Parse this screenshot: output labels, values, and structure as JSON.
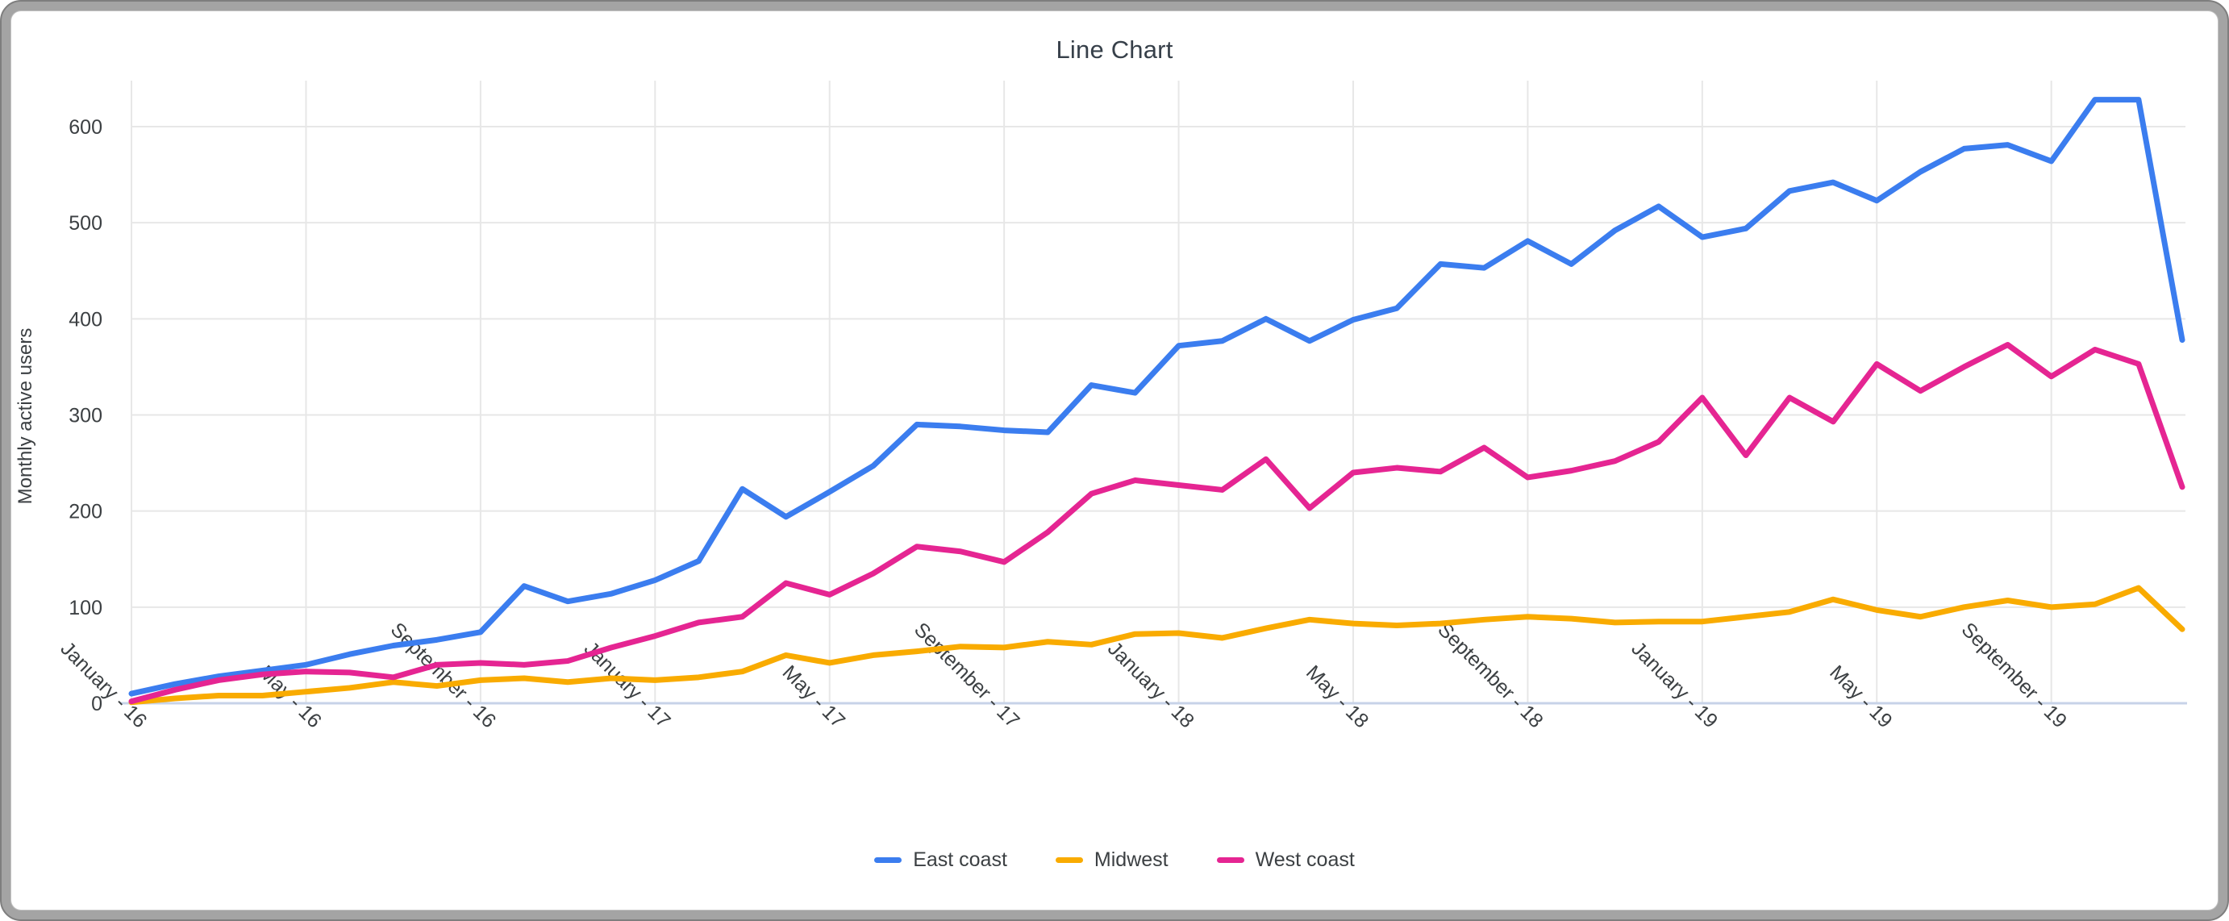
{
  "title": "Line Chart",
  "y_axis": {
    "title": "Monthly active users",
    "tick_labels": [
      "0",
      "100",
      "200",
      "300",
      "400",
      "500",
      "600"
    ]
  },
  "x_axis": {
    "tick_labels": [
      "January - 16",
      "May - 16",
      "September - 16",
      "January - 17",
      "May - 17",
      "September - 17",
      "January - 18",
      "May - 18",
      "September - 18",
      "January - 19",
      "May - 19",
      "September - 19"
    ]
  },
  "colors": {
    "east_coast": "#3b7def",
    "midwest": "#f9ab00",
    "west_coast": "#e52592",
    "gridline": "#e7e7e7",
    "axis_line": "#c7d3e8",
    "tick_text": "#3c4043"
  },
  "legend": {
    "items": [
      {
        "label": "East coast",
        "color": "#3b7def"
      },
      {
        "label": "Midwest",
        "color": "#f9ab00"
      },
      {
        "label": "West coast",
        "color": "#e52592"
      }
    ]
  },
  "chart_data": {
    "type": "line",
    "title": "Line Chart",
    "ylabel": "Monthly active users",
    "n_points": 48,
    "x_range_months": "January 2016 - December 2019",
    "x_tick_indices": [
      0,
      4,
      8,
      12,
      16,
      20,
      24,
      28,
      32,
      36,
      40,
      44
    ],
    "x_tick_labels": [
      "January - 16",
      "May - 16",
      "September - 16",
      "January - 17",
      "May - 17",
      "September - 17",
      "January - 18",
      "May - 18",
      "September - 18",
      "January - 19",
      "May - 19",
      "September - 19"
    ],
    "yticks": [
      0,
      100,
      200,
      300,
      400,
      500,
      600
    ],
    "ylim": [
      0,
      640
    ],
    "grid": true,
    "legend_position": "bottom",
    "series": [
      {
        "name": "East coast",
        "color": "#3b7def",
        "values": [
          10,
          20,
          28,
          34,
          40,
          51,
          60,
          66,
          74,
          122,
          106,
          114,
          128,
          148,
          223,
          194,
          220,
          247,
          290,
          288,
          284,
          282,
          331,
          323,
          372,
          377,
          400,
          377,
          399,
          411,
          457,
          453,
          481,
          457,
          492,
          517,
          485,
          494,
          533,
          542,
          523,
          553,
          577,
          581,
          564,
          628,
          628,
          378
        ]
      },
      {
        "name": "Midwest",
        "color": "#f9ab00",
        "values": [
          1,
          5,
          8,
          8,
          12,
          16,
          22,
          18,
          24,
          26,
          22,
          26,
          24,
          27,
          33,
          50,
          42,
          50,
          54,
          59,
          58,
          64,
          61,
          72,
          73,
          68,
          78,
          87,
          83,
          81,
          83,
          87,
          90,
          88,
          84,
          85,
          85,
          90,
          95,
          108,
          97,
          90,
          100,
          107,
          100,
          103,
          120,
          77
        ]
      },
      {
        "name": "West coast",
        "color": "#e52592",
        "values": [
          2,
          14,
          24,
          30,
          33,
          32,
          27,
          40,
          42,
          40,
          44,
          58,
          70,
          84,
          90,
          125,
          113,
          135,
          163,
          158,
          147,
          178,
          218,
          232,
          227,
          222,
          254,
          203,
          240,
          245,
          241,
          266,
          235,
          242,
          252,
          272,
          318,
          258,
          318,
          293,
          353,
          325,
          350,
          373,
          340,
          368,
          353,
          225
        ]
      }
    ]
  }
}
